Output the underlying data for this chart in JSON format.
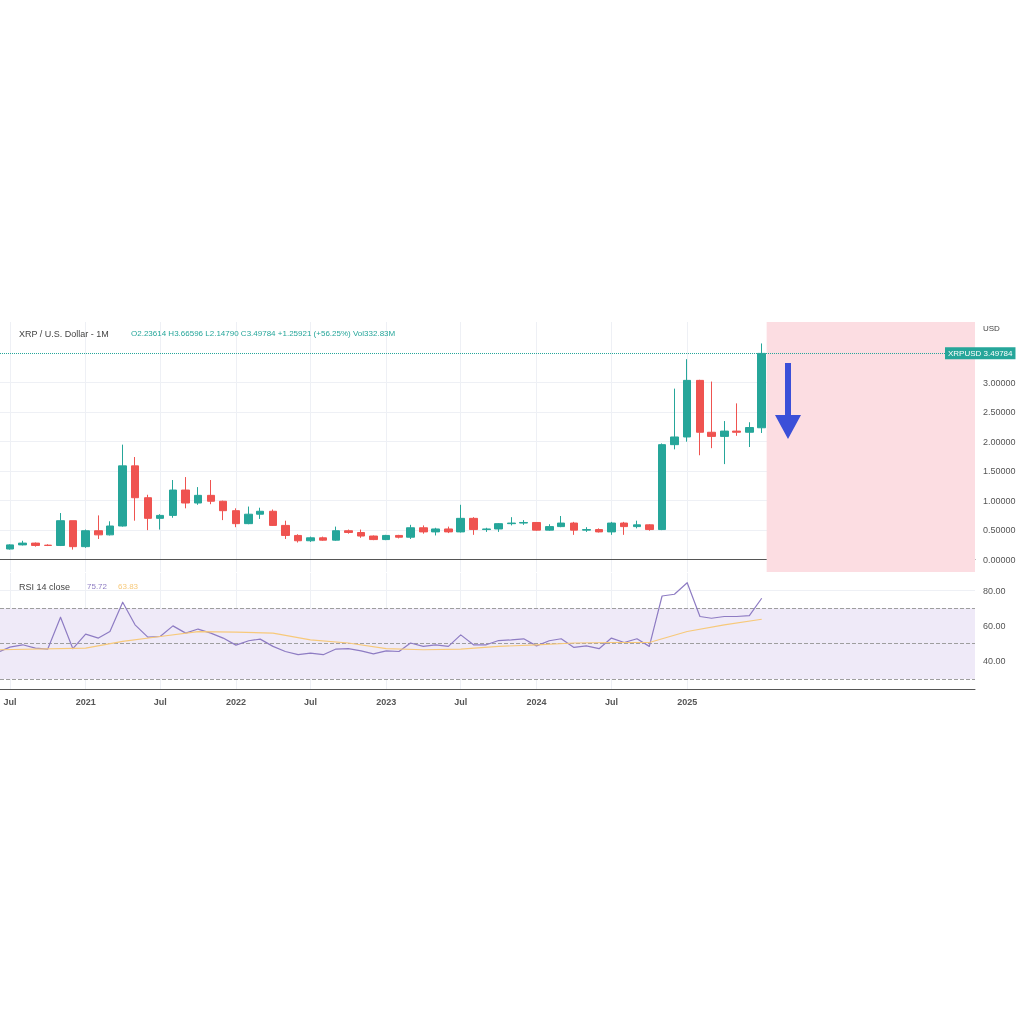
{
  "chart_data": [
    {
      "type": "candlestick",
      "title": "XRP / U.S. Dollar - 1M",
      "subtitle": "O2.23614 H3.66596 L2.14790 C3.49784 +1.25921 (+56.25%) Vol332.83M",
      "ylabel": "USD",
      "x": [
        "2020-07",
        "2020-08",
        "2020-09",
        "2020-10",
        "2020-11",
        "2020-12",
        "2021-01",
        "2021-02",
        "2021-03",
        "2021-04",
        "2021-05",
        "2021-06",
        "2021-07",
        "2021-08",
        "2021-09",
        "2021-10",
        "2021-11",
        "2021-12",
        "2022-01",
        "2022-02",
        "2022-03",
        "2022-04",
        "2022-05",
        "2022-06",
        "2022-07",
        "2022-08",
        "2022-09",
        "2022-10",
        "2022-11",
        "2022-12",
        "2023-01",
        "2023-02",
        "2023-03",
        "2023-04",
        "2023-05",
        "2023-06",
        "2023-07",
        "2023-08",
        "2023-09",
        "2023-10",
        "2023-11",
        "2023-12",
        "2024-01",
        "2024-02",
        "2024-03",
        "2024-04",
        "2024-05",
        "2024-06",
        "2024-07",
        "2024-08",
        "2024-09",
        "2024-10",
        "2024-11",
        "2024-12",
        "2025-01",
        "2025-02",
        "2025-03",
        "2025-04",
        "2025-05",
        "2025-06",
        "2025-07"
      ],
      "ohlc": [
        [
          0.18,
          0.26,
          0.17,
          0.25
        ],
        [
          0.25,
          0.32,
          0.24,
          0.28
        ],
        [
          0.28,
          0.29,
          0.22,
          0.24
        ],
        [
          0.245,
          0.26,
          0.23,
          0.24
        ],
        [
          0.24,
          0.79,
          0.23,
          0.66
        ],
        [
          0.66,
          0.66,
          0.17,
          0.22
        ],
        [
          0.22,
          0.51,
          0.2,
          0.49
        ],
        [
          0.49,
          0.75,
          0.35,
          0.42
        ],
        [
          0.42,
          0.65,
          0.41,
          0.57
        ],
        [
          0.57,
          1.95,
          0.56,
          1.59
        ],
        [
          1.59,
          1.74,
          0.66,
          1.05
        ],
        [
          1.05,
          1.1,
          0.5,
          0.7
        ],
        [
          0.7,
          0.77,
          0.51,
          0.75
        ],
        [
          0.75,
          1.35,
          0.71,
          1.18
        ],
        [
          1.18,
          1.4,
          0.87,
          0.96
        ],
        [
          0.96,
          1.23,
          0.93,
          1.09
        ],
        [
          1.09,
          1.35,
          0.94,
          0.99
        ],
        [
          0.99,
          1.0,
          0.67,
          0.83
        ],
        [
          0.83,
          0.87,
          0.55,
          0.61
        ],
        [
          0.61,
          0.9,
          0.6,
          0.77
        ],
        [
          0.77,
          0.88,
          0.69,
          0.82
        ],
        [
          0.82,
          0.85,
          0.57,
          0.58
        ],
        [
          0.58,
          0.66,
          0.35,
          0.41
        ],
        [
          0.41,
          0.43,
          0.29,
          0.32
        ],
        [
          0.32,
          0.39,
          0.3,
          0.37
        ],
        [
          0.37,
          0.39,
          0.32,
          0.33
        ],
        [
          0.33,
          0.56,
          0.32,
          0.49
        ],
        [
          0.49,
          0.51,
          0.44,
          0.46
        ],
        [
          0.46,
          0.51,
          0.37,
          0.4
        ],
        [
          0.4,
          0.41,
          0.33,
          0.34
        ],
        [
          0.34,
          0.42,
          0.33,
          0.41
        ],
        [
          0.41,
          0.42,
          0.36,
          0.38
        ],
        [
          0.38,
          0.59,
          0.35,
          0.54
        ],
        [
          0.54,
          0.58,
          0.44,
          0.47
        ],
        [
          0.47,
          0.54,
          0.41,
          0.52
        ],
        [
          0.52,
          0.56,
          0.45,
          0.47
        ],
        [
          0.47,
          0.93,
          0.46,
          0.7
        ],
        [
          0.7,
          0.72,
          0.42,
          0.51
        ],
        [
          0.51,
          0.54,
          0.47,
          0.52
        ],
        [
          0.52,
          0.62,
          0.47,
          0.61
        ],
        [
          0.61,
          0.72,
          0.58,
          0.62
        ],
        [
          0.62,
          0.67,
          0.59,
          0.63
        ],
        [
          0.63,
          0.63,
          0.49,
          0.5
        ],
        [
          0.5,
          0.6,
          0.49,
          0.56
        ],
        [
          0.56,
          0.74,
          0.55,
          0.62
        ],
        [
          0.62,
          0.64,
          0.42,
          0.5
        ],
        [
          0.5,
          0.55,
          0.47,
          0.51
        ],
        [
          0.51,
          0.53,
          0.46,
          0.47
        ],
        [
          0.47,
          0.64,
          0.42,
          0.62
        ],
        [
          0.62,
          0.64,
          0.42,
          0.56
        ],
        [
          0.56,
          0.66,
          0.53,
          0.59
        ],
        [
          0.59,
          0.6,
          0.49,
          0.51
        ],
        [
          0.51,
          1.97,
          0.5,
          1.95
        ],
        [
          1.95,
          2.9,
          1.87,
          2.08
        ],
        [
          2.08,
          3.4,
          2.0,
          3.04
        ],
        [
          3.04,
          3.05,
          1.77,
          2.16
        ],
        [
          2.16,
          3.02,
          1.89,
          2.09
        ],
        [
          2.09,
          2.35,
          1.62,
          2.18
        ],
        [
          2.18,
          2.65,
          2.1,
          2.16
        ],
        [
          2.16,
          2.33,
          1.91,
          2.24
        ],
        [
          2.23614,
          3.66596,
          2.1479,
          3.49784
        ]
      ],
      "colors": [
        "#26a69a",
        "#26a69a",
        "#ef5350",
        "#ef5350",
        "#26a69a",
        "#ef5350",
        "#26a69a",
        "#ef5350",
        "#26a69a",
        "#26a69a",
        "#ef5350",
        "#ef5350",
        "#26a69a",
        "#26a69a",
        "#ef5350",
        "#26a69a",
        "#ef5350",
        "#ef5350",
        "#ef5350",
        "#26a69a",
        "#26a69a",
        "#ef5350",
        "#ef5350",
        "#ef5350",
        "#26a69a",
        "#ef5350",
        "#26a69a",
        "#ef5350",
        "#ef5350",
        "#ef5350",
        "#26a69a",
        "#ef5350",
        "#26a69a",
        "#ef5350",
        "#26a69a",
        "#ef5350",
        "#26a69a",
        "#ef5350",
        "#26a69a",
        "#26a69a",
        "#26a69a",
        "#26a69a",
        "#ef5350",
        "#26a69a",
        "#26a69a",
        "#ef5350",
        "#26a69a",
        "#ef5350",
        "#26a69a",
        "#ef5350",
        "#26a69a",
        "#ef5350",
        "#26a69a",
        "#26a69a",
        "#26a69a",
        "#ef5350",
        "#ef5350",
        "#26a69a",
        "#ef5350",
        "#26a69a",
        "#26a69a"
      ],
      "xlim": [
        "2020-06-07",
        "2026-12-01"
      ],
      "xticks": [
        {
          "value": "2020-07",
          "label": null
        },
        {
          "value": "2021-01",
          "label": null
        },
        {
          "value": "2021-07",
          "label": null
        },
        {
          "value": "2022-01",
          "label": null
        },
        {
          "value": "2022-07",
          "label": null
        },
        {
          "value": "2023-01",
          "label": null
        },
        {
          "value": "2023-07",
          "label": null
        },
        {
          "value": "2024-01",
          "label": null
        },
        {
          "value": "2024-07",
          "label": null
        },
        {
          "value": "2025-01",
          "label": null
        }
      ],
      "ylim": [
        -0.21,
        4.03
      ],
      "yticks": [
        {
          "value": 0,
          "label": "0.00000"
        },
        {
          "value": 0.5,
          "label": "0.50000"
        },
        {
          "value": 1,
          "label": "1.00000"
        },
        {
          "value": 1.5,
          "label": "1.50000"
        },
        {
          "value": 2,
          "label": "2.00000"
        },
        {
          "value": 2.5,
          "label": "2.50000"
        },
        {
          "value": 3,
          "label": "3.00000"
        }
      ],
      "tick_labels": "y",
      "grid": true,
      "ref_lines": [
        {
          "axis": "y",
          "value": 3.49784,
          "label": "XRPUSD 3.49784",
          "color": "#26a69a",
          "line_style": "dotted"
        }
      ],
      "bands": [
        {
          "axis": "x",
          "from": "2025-07-13",
          "to": "2026-12-01",
          "color": "#fcdde2"
        }
      ]
    },
    {
      "type": "line",
      "title": "RSI 14 close",
      "legend": "top left",
      "marker": "none",
      "grid": true,
      "series": [
        {
          "name": "75.72",
          "color": "#8e7cc3",
          "x": [
            "2020-06-07",
            "2020-07",
            "2020-08",
            "2020-09",
            "2020-10",
            "2020-11",
            "2020-12",
            "2021-01",
            "2021-02",
            "2021-03",
            "2021-04",
            "2021-05",
            "2021-06",
            "2021-07",
            "2021-08",
            "2021-09",
            "2021-10",
            "2021-11",
            "2021-12",
            "2022-01",
            "2022-02",
            "2022-03",
            "2022-04",
            "2022-05",
            "2022-06",
            "2022-07",
            "2022-08",
            "2022-09",
            "2022-10",
            "2022-11",
            "2022-12",
            "2023-01",
            "2023-02",
            "2023-03",
            "2023-04",
            "2023-05",
            "2023-06",
            "2023-07",
            "2023-08",
            "2023-09",
            "2023-10",
            "2023-11",
            "2023-12",
            "2024-01",
            "2024-02",
            "2024-03",
            "2024-04",
            "2024-05",
            "2024-06",
            "2024-07",
            "2024-08",
            "2024-09",
            "2024-10",
            "2024-11",
            "2024-12",
            "2025-01",
            "2025-02",
            "2025-03",
            "2025-04",
            "2025-05",
            "2025-06",
            "2025-07"
          ],
          "values": [
            45.6,
            48.1,
            49.4,
            47.5,
            47.0,
            65.0,
            47.2,
            55.4,
            53.2,
            56.9,
            73.5,
            60.7,
            53.7,
            54.1,
            60.1,
            56.0,
            58.3,
            56.0,
            53.2,
            49.2,
            51.7,
            52.6,
            48.5,
            45.6,
            43.8,
            44.7,
            43.8,
            47.0,
            47.2,
            46.0,
            44.3,
            46.0,
            45.6,
            50.4,
            48.5,
            49.4,
            48.5,
            55.0,
            49.4,
            49.4,
            51.8,
            52.2,
            52.8,
            48.8,
            51.7,
            52.8,
            47.9,
            48.8,
            47.2,
            53.2,
            50.7,
            52.8,
            48.5,
            77.0,
            78.0,
            84.5,
            65.4,
            64.4,
            65.4,
            65.4,
            65.9,
            75.72
          ]
        },
        {
          "name": "63.83",
          "color": "#f7c97a",
          "x": [
            "2020-06-07",
            "2021-01",
            "2021-04",
            "2021-07",
            "2021-10",
            "2022-01",
            "2022-04",
            "2022-07",
            "2022-10",
            "2023-01",
            "2023-04",
            "2023-07",
            "2023-10",
            "2024-01",
            "2024-04",
            "2024-07",
            "2024-10",
            "2025-01",
            "2025-04",
            "2025-07"
          ],
          "values": [
            46.6,
            47.5,
            51.3,
            54.1,
            56.9,
            56.6,
            56.0,
            52.2,
            50.4,
            47.2,
            46.6,
            47.0,
            48.5,
            49.4,
            50.4,
            50.7,
            50.7,
            56.9,
            60.7,
            63.83
          ]
        }
      ],
      "xlim": [
        "2020-06-07",
        "2026-12-01"
      ],
      "xticks": [
        {
          "value": "2020-07",
          "label": "Jul"
        },
        {
          "value": "2021-01",
          "label": "2021"
        },
        {
          "value": "2021-07",
          "label": "Jul"
        },
        {
          "value": "2022-01",
          "label": "2022"
        },
        {
          "value": "2022-07",
          "label": "Jul"
        },
        {
          "value": "2023-01",
          "label": "2023"
        },
        {
          "value": "2023-07",
          "label": "Jul"
        },
        {
          "value": "2024-01",
          "label": "2024"
        },
        {
          "value": "2024-07",
          "label": "Jul"
        },
        {
          "value": "2025-01",
          "label": "2025"
        }
      ],
      "ylim": [
        24.4,
        90
      ],
      "yticks": [
        {
          "value": 40,
          "label": "40.00"
        },
        {
          "value": 60,
          "label": "60.00"
        },
        {
          "value": 80,
          "label": "80.00"
        }
      ],
      "ref_lines": [
        {
          "axis": "y",
          "value": 70,
          "color": "#9e9e9e",
          "line_style": "dashed"
        },
        {
          "axis": "y",
          "value": 50,
          "color": "#9e9e9e",
          "line_style": "dashed"
        },
        {
          "axis": "y",
          "value": 30,
          "color": "#9e9e9e",
          "line_style": "dashed"
        }
      ],
      "bands": [
        {
          "axis": "y",
          "from": 30,
          "to": 70,
          "color": "#efeaf8"
        }
      ]
    }
  ]
}
